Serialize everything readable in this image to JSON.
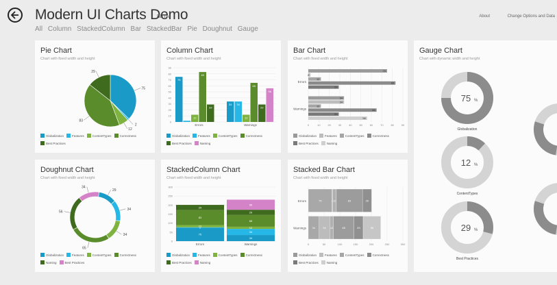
{
  "app": {
    "title": "Modern UI Charts Demo",
    "badge": "BETA"
  },
  "top_links": {
    "about": "About",
    "options": "Change Options and Data"
  },
  "nav": [
    "All",
    "Column",
    "StackedColumn",
    "Bar",
    "StackedBar",
    "Pie",
    "Doughnut",
    "Gauge"
  ],
  "colors": {
    "globalization": "#1a9bc7",
    "features": "#26b7e6",
    "contenttypes": "#5a8c2c",
    "correctness": "#7fb33f",
    "naming": "#3f6b1e",
    "bestpractices": "#d583c8",
    "gray_dark": "#8a8a8a",
    "gray_light": "#c9c9c9"
  },
  "subtitle_fixed": "Chart with fixed width and height",
  "subtitle_dynamic": "Chart with dynamic width and height",
  "legend6": [
    {
      "label": "Globalization",
      "color": "#1a9bc7"
    },
    {
      "label": "Features",
      "color": "#26b7e6"
    },
    {
      "label": "ContentTypes",
      "color": "#7fb33f"
    },
    {
      "label": "Correctness",
      "color": "#5a8c2c"
    },
    {
      "label": "Best Practices",
      "color": "#3f6b1e"
    },
    {
      "label": "Naming",
      "color": "#d583c8"
    }
  ],
  "legend6_gray": [
    {
      "label": "Globalization",
      "color": "#9a9a9a"
    },
    {
      "label": "Features",
      "color": "#bdbdbd"
    },
    {
      "label": "ContentTypes",
      "color": "#a5a5a5"
    },
    {
      "label": "Correctness",
      "color": "#8a8a8a"
    },
    {
      "label": "Best Practices",
      "color": "#7a7a7a"
    },
    {
      "label": "Naming",
      "color": "#cfcfcf"
    }
  ],
  "legend_doughnut": [
    {
      "label": "Globalization",
      "color": "#1a9bc7"
    },
    {
      "label": "Features",
      "color": "#26b7e6"
    },
    {
      "label": "ContentTypes",
      "color": "#7fb33f"
    },
    {
      "label": "Correctness",
      "color": "#5a8c2c"
    },
    {
      "label": "Naming",
      "color": "#3f6b1e"
    },
    {
      "label": "Best Practices",
      "color": "#d583c8"
    }
  ],
  "cards": {
    "pie": {
      "title": "Pie Chart"
    },
    "column": {
      "title": "Column Chart"
    },
    "bar": {
      "title": "Bar Chart"
    },
    "gauge": {
      "title": "Gauge Chart"
    },
    "doughnut": {
      "title": "Doughnut Chart"
    },
    "stackedcolumn": {
      "title": "StackedColumn Chart"
    },
    "stackedbar": {
      "title": "Stacked Bar Chart"
    }
  },
  "chart_data": [
    {
      "id": "pie",
      "type": "pie",
      "title": "Pie Chart",
      "slices": [
        {
          "label": "Globalization",
          "value": 75,
          "color": "#1a9bc7"
        },
        {
          "label": "Features",
          "value": 2,
          "color": "#26b7e6"
        },
        {
          "label": "ContentTypes",
          "value": 12,
          "color": "#7fb33f"
        },
        {
          "label": "Correctness",
          "value": 83,
          "color": "#5a8c2c"
        },
        {
          "label": "Best Practices",
          "value": 29,
          "color": "#3f6b1e"
        }
      ]
    },
    {
      "id": "column",
      "type": "bar",
      "title": "Column Chart",
      "categories": [
        "Errors",
        "Warnings"
      ],
      "series": [
        {
          "name": "Globalization",
          "values": [
            75,
            34
          ],
          "color": "#1a9bc7"
        },
        {
          "name": "Features",
          "values": [
            2,
            34
          ],
          "color": "#26b7e6"
        },
        {
          "name": "ContentTypes",
          "values": [
            12,
            12
          ],
          "color": "#7fb33f"
        },
        {
          "name": "Correctness",
          "values": [
            83,
            65
          ],
          "color": "#5a8c2c"
        },
        {
          "name": "Best Practices",
          "values": [
            29,
            29
          ],
          "color": "#3f6b1e"
        },
        {
          "name": "Naming",
          "values": [
            0,
            56
          ],
          "color": "#d583c8"
        }
      ],
      "ylim": [
        0,
        90
      ],
      "yticks": [
        "90",
        "80",
        "70",
        "60",
        "50",
        "40",
        "30",
        "20",
        "10",
        "0"
      ]
    },
    {
      "id": "bar",
      "type": "bar",
      "title": "Bar Chart",
      "categories": [
        "Errors",
        "Warnings"
      ],
      "series": [
        {
          "name": "Globalization",
          "values": [
            75,
            34
          ]
        },
        {
          "name": "Features",
          "values": [
            2,
            34
          ]
        },
        {
          "name": "ContentTypes",
          "values": [
            12,
            12
          ]
        },
        {
          "name": "Correctness",
          "values": [
            83,
            65
          ]
        },
        {
          "name": "Best Practices",
          "values": [
            29,
            29
          ]
        },
        {
          "name": "Naming",
          "values": [
            0,
            56
          ]
        }
      ],
      "xlim": [
        0,
        90
      ],
      "xticks": [
        "0",
        "10",
        "20",
        "30",
        "40",
        "50",
        "60",
        "70",
        "80",
        "90"
      ]
    },
    {
      "id": "gauge",
      "type": "pie",
      "title": "Gauge Chart",
      "gauges": [
        {
          "label": "Globalization",
          "value": 75
        },
        {
          "label": "ContentTypes",
          "value": 12
        },
        {
          "label": "Best Practices",
          "value": 29
        }
      ]
    },
    {
      "id": "doughnut",
      "type": "pie",
      "title": "Doughnut Chart",
      "slices": [
        {
          "label": "Globalization",
          "value": 29,
          "color": "#1a9bc7"
        },
        {
          "label": "Features",
          "value": 34,
          "color": "#26b7e6"
        },
        {
          "label": "ContentTypes",
          "value": 34,
          "color": "#7fb33f"
        },
        {
          "label": "Correctness",
          "value": 65,
          "color": "#5a8c2c"
        },
        {
          "label": "Naming",
          "value": 56,
          "color": "#3f6b1e"
        },
        {
          "label": "Best Practices",
          "value": 34,
          "color": "#d583c8"
        }
      ]
    },
    {
      "id": "stackedcolumn",
      "type": "bar",
      "title": "StackedColumn Chart",
      "categories": [
        "Errors",
        "Warnings"
      ],
      "series": [
        {
          "name": "Globalization",
          "values": [
            75,
            34
          ],
          "color": "#1a9bc7"
        },
        {
          "name": "Features",
          "values": [
            2,
            34
          ],
          "color": "#26b7e6"
        },
        {
          "name": "ContentTypes",
          "values": [
            12,
            12
          ],
          "color": "#7fb33f"
        },
        {
          "name": "Correctness",
          "values": [
            83,
            65
          ],
          "color": "#5a8c2c"
        },
        {
          "name": "Best Practices",
          "values": [
            29,
            29
          ],
          "color": "#3f6b1e"
        },
        {
          "name": "Naming",
          "values": [
            0,
            56
          ],
          "color": "#d583c8"
        }
      ],
      "ylim": [
        0,
        300
      ],
      "yticks": [
        "300",
        "250",
        "200",
        "150",
        "100",
        "50",
        "0"
      ]
    },
    {
      "id": "stackedbar",
      "type": "bar",
      "title": "Stacked Bar Chart",
      "categories": [
        "Errors",
        "Warnings"
      ],
      "series": [
        {
          "name": "Globalization",
          "values": [
            75,
            34
          ]
        },
        {
          "name": "Features",
          "values": [
            2,
            34
          ]
        },
        {
          "name": "ContentTypes",
          "values": [
            12,
            12
          ]
        },
        {
          "name": "Correctness",
          "values": [
            83,
            65
          ]
        },
        {
          "name": "Best Practices",
          "values": [
            29,
            29
          ]
        },
        {
          "name": "Naming",
          "values": [
            0,
            56
          ]
        }
      ],
      "xlim": [
        0,
        300
      ],
      "xticks": [
        "0",
        "50",
        "100",
        "150",
        "200",
        "250",
        "300"
      ]
    }
  ]
}
